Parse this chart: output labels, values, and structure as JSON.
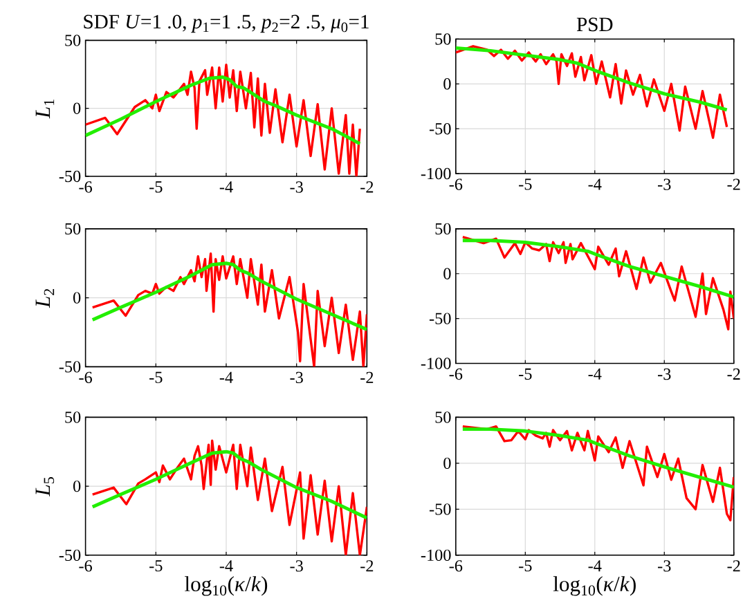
{
  "chart_data": [
    {
      "type": "line",
      "title": "SDF *U*=1 .0, *p*$_{1}$=1 .5, *p*$_{2}$=2 .5, *μ*$_{0}$=1",
      "ylabel": "*L*$_{1}$",
      "xlim": [
        -6,
        -2
      ],
      "ylim": [
        -50,
        50
      ],
      "xticks": [
        -6,
        -5,
        -4,
        -3,
        -2
      ],
      "yticks": [
        -50,
        0,
        50
      ],
      "grid": true,
      "series": [
        {
          "color": "#ff0000",
          "x": [
            -6,
            -5.72,
            -5.55,
            -5.3,
            -5.15,
            -5.05,
            -5.0,
            -4.95,
            -4.85,
            -4.75,
            -4.6,
            -4.55,
            -4.5,
            -4.45,
            -4.42,
            -4.38,
            -4.3,
            -4.27,
            -4.2,
            -4.15,
            -4.1,
            -4.05,
            -4.0,
            -3.95,
            -3.9,
            -3.85,
            -3.8,
            -3.72,
            -3.65,
            -3.6,
            -3.55,
            -3.5,
            -3.45,
            -3.38,
            -3.3,
            -3.2,
            -3.1,
            -3.0,
            -2.9,
            -2.8,
            -2.7,
            -2.6,
            -2.5,
            -2.4,
            -2.3,
            -2.25,
            -2.2,
            -2.15,
            -2.1
          ],
          "values": [
            -12,
            -7,
            -19,
            1,
            6,
            0,
            10,
            -2,
            12,
            8,
            18,
            10,
            27,
            15,
            -15,
            20,
            28,
            10,
            30,
            0,
            30,
            5,
            32,
            8,
            28,
            -2,
            27,
            0,
            26,
            -14,
            22,
            -20,
            18,
            -18,
            14,
            -25,
            10,
            -28,
            6,
            -35,
            3,
            -45,
            0,
            -48,
            -5,
            -48,
            -12,
            -50,
            -15
          ]
        },
        {
          "color": "#22ee00",
          "x": [
            -6,
            -5.5,
            -5,
            -4.5,
            -4.25,
            -4.05,
            -3.95,
            -3.85,
            -3.75,
            -3.6,
            -3.45,
            -3.3,
            -3,
            -2.5,
            -2.1
          ],
          "values": [
            -20,
            -8,
            5,
            17,
            22,
            23,
            21,
            16,
            15,
            10,
            5,
            2,
            -5,
            -15,
            -26
          ]
        }
      ]
    },
    {
      "type": "line",
      "title": "PSD",
      "xlim": [
        -6,
        -2
      ],
      "ylim": [
        -100,
        50
      ],
      "xticks": [
        -6,
        -5,
        -4,
        -3,
        -2
      ],
      "yticks": [
        -100,
        -50,
        0,
        50
      ],
      "grid": true,
      "series": [
        {
          "color": "#ff0000",
          "x": [
            -6,
            -5.75,
            -5.55,
            -5.45,
            -5.35,
            -5.25,
            -5.15,
            -5.05,
            -4.95,
            -4.85,
            -4.78,
            -4.7,
            -4.6,
            -4.55,
            -4.52,
            -4.48,
            -4.4,
            -4.33,
            -4.28,
            -4.2,
            -4.15,
            -4.05,
            -3.98,
            -3.9,
            -3.78,
            -3.7,
            -3.62,
            -3.55,
            -3.45,
            -3.35,
            -3.25,
            -3.15,
            -3.0,
            -2.9,
            -2.78,
            -2.7,
            -2.55,
            -2.45,
            -2.3,
            -2.2,
            -2.1
          ],
          "values": [
            35,
            42,
            38,
            31,
            38,
            28,
            37,
            26,
            35,
            25,
            33,
            22,
            33,
            25,
            0,
            33,
            20,
            34,
            8,
            30,
            4,
            32,
            0,
            25,
            -15,
            22,
            -22,
            15,
            -12,
            10,
            -25,
            5,
            -30,
            0,
            -52,
            -3,
            -50,
            -8,
            -60,
            -12,
            -48
          ]
        },
        {
          "color": "#22ee00",
          "x": [
            -6,
            -5.5,
            -5,
            -4.5,
            -4.25,
            -4,
            -3.5,
            -3,
            -2.5,
            -2.1
          ],
          "values": [
            40,
            37,
            32,
            27,
            23,
            15,
            1,
            -11,
            -20,
            -29
          ]
        }
      ]
    },
    {
      "type": "line",
      "ylabel": "*L*$_{2}$",
      "xlim": [
        -6,
        -2
      ],
      "ylim": [
        -50,
        50
      ],
      "xticks": [
        -6,
        -5,
        -4,
        -3,
        -2
      ],
      "yticks": [
        -50,
        0,
        50
      ],
      "grid": true,
      "series": [
        {
          "color": "#ff0000",
          "x": [
            -5.9,
            -5.6,
            -5.43,
            -5.25,
            -5.15,
            -5.05,
            -5.0,
            -4.95,
            -4.85,
            -4.75,
            -4.65,
            -4.6,
            -4.5,
            -4.45,
            -4.4,
            -4.35,
            -4.3,
            -4.28,
            -4.22,
            -4.18,
            -4.15,
            -4.1,
            -4.05,
            -4.0,
            -3.9,
            -3.85,
            -3.8,
            -3.7,
            -3.65,
            -3.55,
            -3.5,
            -3.45,
            -3.35,
            -3.25,
            -3.1,
            -2.98,
            -2.95,
            -2.9,
            -2.8,
            -2.75,
            -2.7,
            -2.6,
            -2.5,
            -2.4,
            -2.3,
            -2.2,
            -2.1,
            -2.05,
            -2.0
          ],
          "values": [
            -7,
            -2,
            -13,
            2,
            5,
            3,
            10,
            3,
            8,
            5,
            15,
            10,
            20,
            12,
            30,
            15,
            28,
            5,
            32,
            -10,
            28,
            13,
            30,
            14,
            30,
            10,
            28,
            0,
            28,
            -5,
            24,
            -10,
            20,
            -15,
            15,
            -25,
            -46,
            10,
            -30,
            -50,
            5,
            -35,
            0,
            -40,
            -5,
            -45,
            -10,
            -50,
            -12
          ]
        },
        {
          "color": "#22ee00",
          "x": [
            -5.9,
            -5.5,
            -5,
            -4.5,
            -4.2,
            -4.0,
            -3.9,
            -3.8,
            -3.7,
            -3.5,
            -3,
            -2.5,
            -2
          ],
          "values": [
            -16,
            -7,
            4,
            16,
            24,
            25,
            24,
            20,
            18,
            12,
            -1,
            -12,
            -23
          ]
        }
      ]
    },
    {
      "type": "line",
      "xlim": [
        -6,
        -2
      ],
      "ylim": [
        -100,
        50
      ],
      "xticks": [
        -6,
        -5,
        -4,
        -3,
        -2
      ],
      "yticks": [
        -100,
        -50,
        0,
        50
      ],
      "grid": true,
      "series": [
        {
          "color": "#ff0000",
          "x": [
            -5.9,
            -5.6,
            -5.42,
            -5.3,
            -5.15,
            -5.07,
            -5.0,
            -4.9,
            -4.8,
            -4.7,
            -4.65,
            -4.6,
            -4.52,
            -4.45,
            -4.42,
            -4.35,
            -4.32,
            -4.2,
            -4.0,
            -3.95,
            -3.8,
            -3.7,
            -3.65,
            -3.55,
            -3.4,
            -3.3,
            -3.2,
            -3.05,
            -2.9,
            -2.85,
            -2.75,
            -2.55,
            -2.45,
            -2.4,
            -2.3,
            -2.15,
            -2.08,
            -2.05,
            -2.0
          ],
          "values": [
            41,
            34,
            39,
            18,
            34,
            22,
            35,
            28,
            26,
            33,
            14,
            35,
            23,
            35,
            12,
            33,
            16,
            34,
            5,
            30,
            10,
            28,
            -3,
            25,
            -17,
            18,
            -10,
            12,
            -20,
            -30,
            8,
            -48,
            0,
            -45,
            -5,
            -40,
            -62,
            -20,
            -50
          ]
        },
        {
          "color": "#22ee00",
          "x": [
            -5.9,
            -5.5,
            -5,
            -4.5,
            -4.1,
            -4,
            -3.5,
            -3,
            -2.5,
            -2
          ],
          "values": [
            37,
            37,
            35,
            30,
            25,
            22,
            8,
            -3,
            -14,
            -26
          ]
        }
      ]
    },
    {
      "type": "line",
      "ylabel": "*L*$_{5}$",
      "xlabel": "log$_{10}$(*κ*/*k*)",
      "xlim": [
        -6,
        -2
      ],
      "ylim": [
        -50,
        50
      ],
      "xticks": [
        -6,
        -5,
        -4,
        -3,
        -2
      ],
      "yticks": [
        -50,
        0,
        50
      ],
      "grid": true,
      "series": [
        {
          "color": "#ff0000",
          "x": [
            -5.9,
            -5.6,
            -5.42,
            -5.25,
            -5.15,
            -5.0,
            -4.95,
            -4.9,
            -4.8,
            -4.7,
            -4.6,
            -4.5,
            -4.45,
            -4.4,
            -4.35,
            -4.32,
            -4.25,
            -4.22,
            -4.2,
            -4.15,
            -4.1,
            -4.0,
            -3.9,
            -3.85,
            -3.8,
            -3.7,
            -3.65,
            -3.55,
            -3.45,
            -3.35,
            -3.2,
            -3.1,
            -2.95,
            -2.9,
            -2.8,
            -2.7,
            -2.6,
            -2.5,
            -2.4,
            -2.3,
            -2.2,
            -2.1,
            -2.0
          ],
          "values": [
            -6,
            -1,
            -13,
            2,
            5,
            10,
            3,
            15,
            5,
            13,
            20,
            5,
            22,
            29,
            15,
            -2,
            30,
            1,
            33,
            12,
            29,
            10,
            30,
            -2,
            30,
            0,
            28,
            -10,
            20,
            -18,
            14,
            -28,
            10,
            -38,
            8,
            -35,
            4,
            -40,
            0,
            -50,
            -5,
            -50,
            -15
          ]
        },
        {
          "color": "#22ee00",
          "x": [
            -5.9,
            -5.5,
            -5,
            -4.5,
            -4.2,
            -4.0,
            -3.9,
            -3.8,
            -3.7,
            -3.5,
            -3,
            -2.5,
            -2
          ],
          "values": [
            -15,
            -6,
            5,
            17,
            24,
            25,
            24,
            20,
            18,
            12,
            -1,
            -11,
            -23
          ]
        }
      ]
    },
    {
      "type": "line",
      "xlabel": "log$_{10}$(*κ*/*k*)",
      "xlim": [
        -6,
        -2
      ],
      "ylim": [
        -100,
        50
      ],
      "xticks": [
        -6,
        -5,
        -4,
        -3,
        -2
      ],
      "yticks": [
        -100,
        -50,
        0,
        50
      ],
      "grid": true,
      "series": [
        {
          "color": "#ff0000",
          "x": [
            -5.9,
            -5.55,
            -5.42,
            -5.3,
            -5.2,
            -5.1,
            -5.0,
            -4.95,
            -4.85,
            -4.75,
            -4.7,
            -4.65,
            -4.6,
            -4.5,
            -4.4,
            -4.33,
            -4.25,
            -4.15,
            -4.1,
            -4.0,
            -3.95,
            -3.8,
            -3.7,
            -3.6,
            -3.5,
            -3.3,
            -3.25,
            -3.1,
            -3.0,
            -2.9,
            -2.8,
            -2.68,
            -2.55,
            -2.45,
            -2.3,
            -2.2,
            -2.1,
            -2.05,
            -2.0
          ],
          "values": [
            40,
            37,
            40,
            24,
            25,
            35,
            26,
            36,
            30,
            27,
            33,
            18,
            36,
            25,
            35,
            14,
            33,
            14,
            35,
            3,
            29,
            12,
            28,
            -5,
            24,
            -24,
            18,
            -15,
            10,
            -18,
            5,
            -38,
            -50,
            -2,
            -42,
            -5,
            -55,
            -62,
            -15
          ]
        },
        {
          "color": "#22ee00",
          "x": [
            -5.9,
            -5.5,
            -5,
            -4.5,
            -4.1,
            -4,
            -3.5,
            -3,
            -2.5,
            -2
          ],
          "values": [
            37,
            37,
            35,
            30,
            25,
            22,
            8,
            -4,
            -15,
            -26
          ]
        }
      ]
    }
  ]
}
